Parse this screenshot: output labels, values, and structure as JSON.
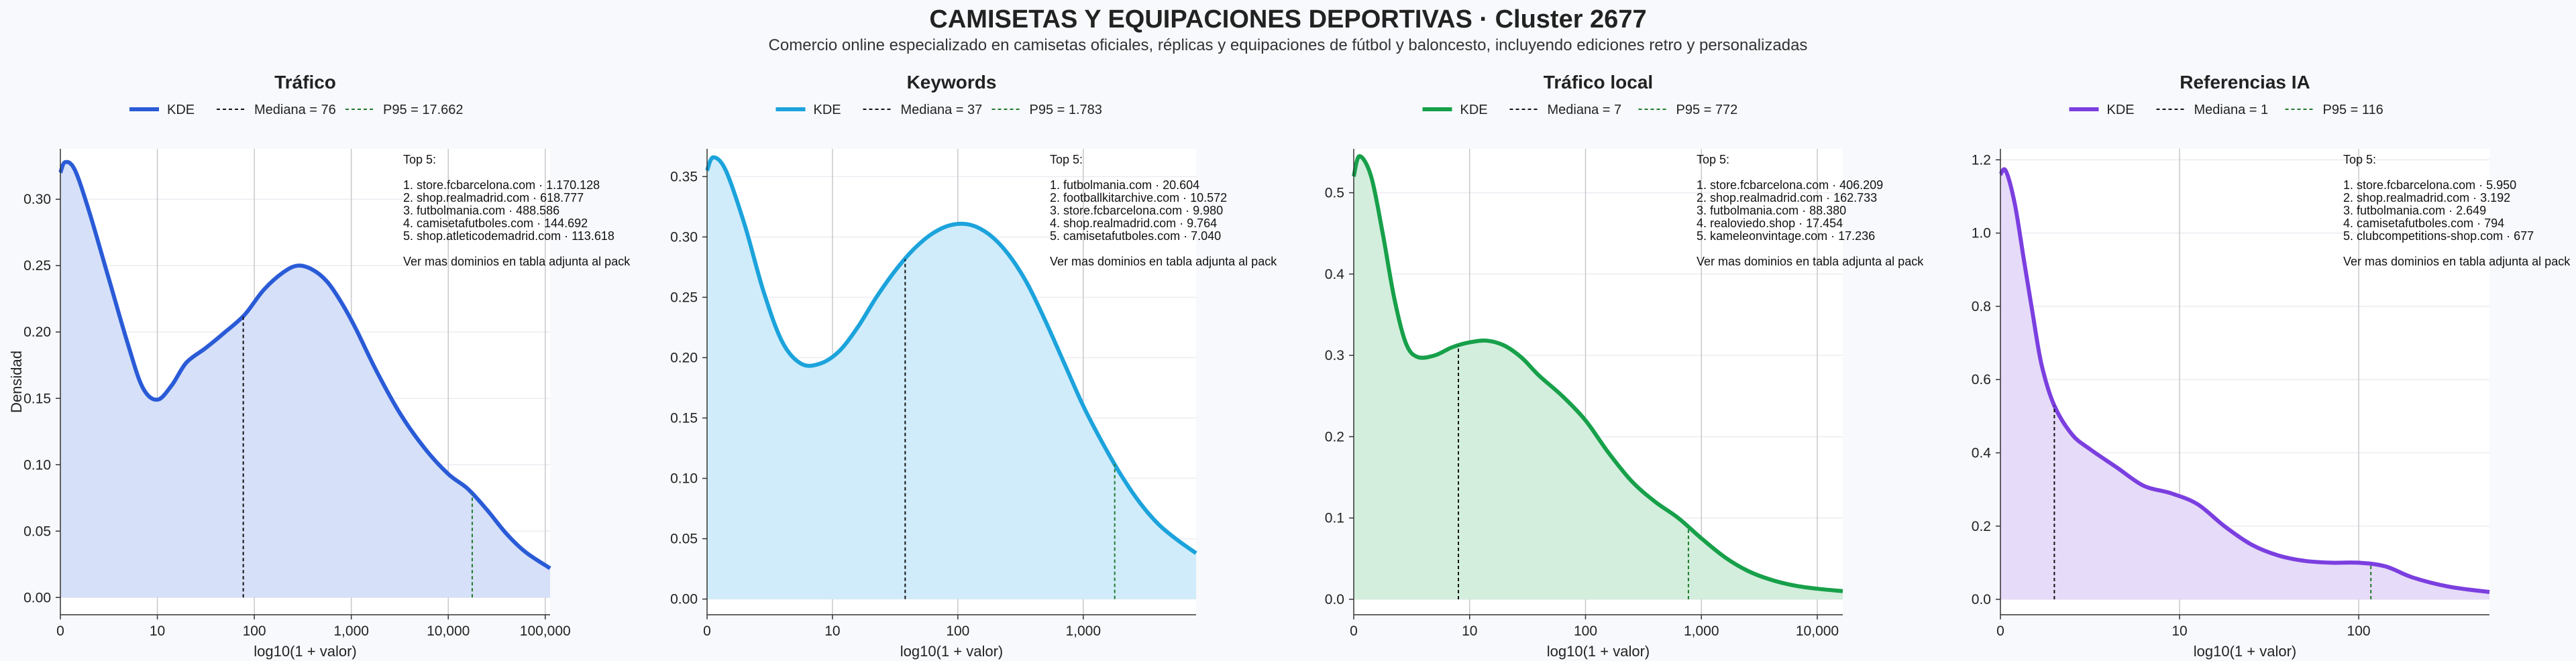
{
  "page": {
    "title": "CAMISETAS Y EQUIPACIONES DEPORTIVAS · Cluster 2677",
    "subtitle": "Comercio online especializado en camisetas oficiales, réplicas y equipaciones de fútbol y baloncesto, incluyendo ediciones retro y personalizadas"
  },
  "chart_data": [
    {
      "type": "area",
      "title": "Tráfico",
      "xlabel": "log10(1 + valor)",
      "ylabel": "Densidad",
      "color": "#2a5bd7",
      "fill": "#d6e0f8",
      "xlim": [
        0,
        5.05
      ],
      "ylim": [
        -0.013,
        0.338
      ],
      "xticks": [
        [
          0,
          "0"
        ],
        [
          1,
          "10"
        ],
        [
          2,
          "100"
        ],
        [
          3,
          "1,000"
        ],
        [
          4,
          "10,000"
        ],
        [
          5,
          "100,000"
        ]
      ],
      "yticks": [
        [
          0,
          "0.00"
        ],
        [
          0.05,
          "0.05"
        ],
        [
          0.1,
          "0.10"
        ],
        [
          0.15,
          "0.15"
        ],
        [
          0.2,
          "0.20"
        ],
        [
          0.25,
          "0.25"
        ],
        [
          0.3,
          "0.30"
        ]
      ],
      "legend": {
        "kde": "KDE",
        "median": "Mediana = 76",
        "p95": "P95 = 17.662"
      },
      "median_x": 1.886,
      "p95_x": 4.247,
      "series": [
        {
          "name": "KDE",
          "x": [
            0,
            0.05,
            0.15,
            0.3,
            0.5,
            0.7,
            0.85,
            1.0,
            1.15,
            1.3,
            1.5,
            1.7,
            1.9,
            2.1,
            2.3,
            2.45,
            2.6,
            2.75,
            2.9,
            3.05,
            3.25,
            3.5,
            3.75,
            4.0,
            4.2,
            4.4,
            4.6,
            4.8,
            5.05
          ],
          "y": [
            0.32,
            0.328,
            0.322,
            0.29,
            0.24,
            0.19,
            0.158,
            0.149,
            0.16,
            0.177,
            0.188,
            0.2,
            0.213,
            0.232,
            0.245,
            0.25,
            0.247,
            0.238,
            0.222,
            0.202,
            0.172,
            0.139,
            0.113,
            0.093,
            0.082,
            0.066,
            0.048,
            0.034,
            0.022
          ]
        }
      ],
      "top5": {
        "header": "Top 5:",
        "items": [
          "1. store.fcbarcelona.com · 1.170.128",
          "2. shop.realmadrid.com · 618.777",
          "3. futbolmania.com · 488.586",
          "4. camisetafutboles.com · 144.692",
          "5. shop.atleticodemadrid.com · 113.618"
        ],
        "footer": "Ver mas dominios en tabla adjunta al pack"
      }
    },
    {
      "type": "area",
      "title": "Keywords",
      "xlabel": "log10(1 + valor)",
      "ylabel": "",
      "color": "#1ca3dc",
      "fill": "#d0ecfa",
      "xlim": [
        0,
        3.9
      ],
      "ylim": [
        -0.013,
        0.373
      ],
      "xticks": [
        [
          0,
          "0"
        ],
        [
          1,
          "10"
        ],
        [
          2,
          "100"
        ],
        [
          3,
          "1,000"
        ]
      ],
      "yticks": [
        [
          0,
          "0.00"
        ],
        [
          0.05,
          "0.05"
        ],
        [
          0.1,
          "0.10"
        ],
        [
          0.15,
          "0.15"
        ],
        [
          0.2,
          "0.20"
        ],
        [
          0.25,
          "0.25"
        ],
        [
          0.3,
          "0.30"
        ],
        [
          0.35,
          "0.35"
        ]
      ],
      "legend": {
        "kde": "KDE",
        "median": "Mediana = 37",
        "p95": "P95 = 1.783"
      },
      "median_x": 1.58,
      "p95_x": 3.251,
      "series": [
        {
          "name": "KDE",
          "x": [
            0,
            0.05,
            0.15,
            0.3,
            0.45,
            0.6,
            0.75,
            0.9,
            1.05,
            1.2,
            1.35,
            1.5,
            1.65,
            1.8,
            1.95,
            2.1,
            2.25,
            2.4,
            2.55,
            2.7,
            2.85,
            3.0,
            3.15,
            3.3,
            3.45,
            3.6,
            3.75,
            3.9
          ],
          "y": [
            0.355,
            0.366,
            0.355,
            0.31,
            0.255,
            0.213,
            0.195,
            0.195,
            0.205,
            0.225,
            0.25,
            0.272,
            0.29,
            0.303,
            0.31,
            0.31,
            0.302,
            0.286,
            0.262,
            0.23,
            0.195,
            0.16,
            0.13,
            0.103,
            0.08,
            0.062,
            0.049,
            0.038
          ]
        }
      ],
      "top5": {
        "header": "Top 5:",
        "items": [
          "1. futbolmania.com · 20.604",
          "2. footballkitarchive.com · 10.572",
          "3. store.fcbarcelona.com · 9.980",
          "4. shop.realmadrid.com · 9.764",
          "5. camisetafutboles.com · 7.040"
        ],
        "footer": "Ver mas dominios en tabla adjunta al pack"
      }
    },
    {
      "type": "area",
      "title": "Tráfico local",
      "xlabel": "log10(1 + valor)",
      "ylabel": "",
      "color": "#17a04a",
      "fill": "#d3eedc",
      "xlim": [
        0,
        4.22
      ],
      "ylim": [
        -0.019,
        0.554
      ],
      "xticks": [
        [
          0,
          "0"
        ],
        [
          1,
          "10"
        ],
        [
          2,
          "100"
        ],
        [
          3,
          "1,000"
        ],
        [
          4,
          "10,000"
        ]
      ],
      "yticks": [
        [
          0,
          "0.0"
        ],
        [
          0.1,
          "0.1"
        ],
        [
          0.2,
          "0.2"
        ],
        [
          0.3,
          "0.3"
        ],
        [
          0.4,
          "0.4"
        ],
        [
          0.5,
          "0.5"
        ]
      ],
      "legend": {
        "kde": "KDE",
        "median": "Mediana = 7",
        "p95": "P95 = 772"
      },
      "median_x": 0.903,
      "p95_x": 2.888,
      "series": [
        {
          "name": "KDE",
          "x": [
            0,
            0.05,
            0.15,
            0.25,
            0.35,
            0.45,
            0.55,
            0.7,
            0.85,
            1.0,
            1.15,
            1.3,
            1.45,
            1.6,
            1.8,
            2.0,
            2.2,
            2.4,
            2.6,
            2.8,
            3.0,
            3.2,
            3.4,
            3.6,
            3.8,
            4.0,
            4.22
          ],
          "y": [
            0.52,
            0.545,
            0.52,
            0.45,
            0.37,
            0.315,
            0.298,
            0.3,
            0.31,
            0.316,
            0.318,
            0.312,
            0.297,
            0.275,
            0.25,
            0.22,
            0.18,
            0.145,
            0.12,
            0.1,
            0.075,
            0.052,
            0.035,
            0.024,
            0.017,
            0.013,
            0.01
          ]
        }
      ],
      "top5": {
        "header": "Top 5:",
        "items": [
          "1. store.fcbarcelona.com · 406.209",
          "2. shop.realmadrid.com · 162.733",
          "3. futbolmania.com · 88.380",
          "4. realoviedo.shop · 17.454",
          "5. kameleonvintage.com · 17.236"
        ],
        "footer": "Ver mas dominios en tabla adjunta al pack"
      }
    },
    {
      "type": "area",
      "title": "Referencias IA",
      "xlabel": "log10(1 + valor)",
      "ylabel": "",
      "color": "#7b3fe0",
      "fill": "#e6dbf8",
      "xlim": [
        0,
        2.73
      ],
      "ylim": [
        -0.042,
        1.23
      ],
      "xticks": [
        [
          0,
          "0"
        ],
        [
          1,
          "10"
        ],
        [
          2,
          "100"
        ]
      ],
      "yticks": [
        [
          0,
          "0.0"
        ],
        [
          0.2,
          "0.2"
        ],
        [
          0.4,
          "0.4"
        ],
        [
          0.6,
          "0.6"
        ],
        [
          0.8,
          "0.8"
        ],
        [
          1.0,
          "1.0"
        ],
        [
          1.2,
          "1.2"
        ]
      ],
      "legend": {
        "kde": "KDE",
        "median": "Mediana = 1",
        "p95": "P95 = 116"
      },
      "median_x": 0.301,
      "p95_x": 2.068,
      "series": [
        {
          "name": "KDE",
          "x": [
            0,
            0.03,
            0.08,
            0.13,
            0.18,
            0.23,
            0.3,
            0.4,
            0.5,
            0.65,
            0.8,
            0.95,
            1.1,
            1.25,
            1.4,
            1.55,
            1.7,
            1.85,
            2.0,
            2.15,
            2.3,
            2.5,
            2.73
          ],
          "y": [
            1.16,
            1.17,
            1.08,
            0.93,
            0.78,
            0.64,
            0.53,
            0.45,
            0.41,
            0.36,
            0.31,
            0.29,
            0.26,
            0.2,
            0.15,
            0.12,
            0.105,
            0.1,
            0.1,
            0.09,
            0.06,
            0.035,
            0.02
          ]
        }
      ],
      "top5": {
        "header": "Top 5:",
        "items": [
          "1. store.fcbarcelona.com · 5.950",
          "2. shop.realmadrid.com · 3.192",
          "3. futbolmania.com · 2.649",
          "4. camisetafutboles.com · 794",
          "5. clubcompetitions-shop.com · 677"
        ],
        "footer": "Ver mas dominios en tabla adjunta al pack"
      }
    }
  ]
}
